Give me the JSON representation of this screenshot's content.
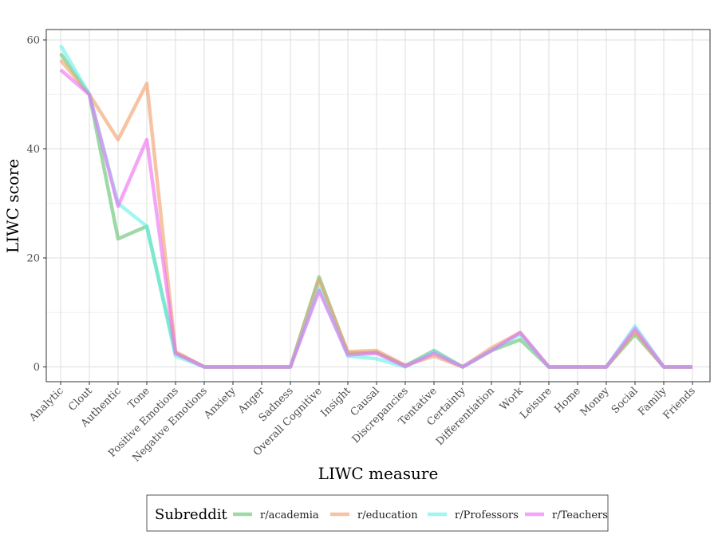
{
  "chart_data": {
    "type": "line",
    "xlabel": "LIWC measure",
    "ylabel": "LIWC score",
    "ylim": [
      -3,
      62
    ],
    "yticks": [
      0,
      20,
      40,
      60
    ],
    "grid": true,
    "legend_placement": "bottom",
    "legend_title": "Subreddit",
    "categories": [
      "Analytic",
      "Clout",
      "Authentic",
      "Tone",
      "Positive Emotions",
      "Negative Emotions",
      "Anxiety",
      "Anger",
      "Sadness",
      "Overall Cognitive",
      "Insight",
      "Causal",
      "Discrepancies",
      "Tentative",
      "Certainty",
      "Differentiation",
      "Work",
      "Leisure",
      "Home",
      "Money",
      "Social",
      "Family",
      "Friends"
    ],
    "series": [
      {
        "name": "r/academia",
        "color": "#62c36e",
        "values": [
          57.5,
          50,
          23.5,
          25.8,
          2.5,
          0,
          0,
          0,
          0,
          16.5,
          2.5,
          2.7,
          0.2,
          3.0,
          0,
          3.0,
          5.0,
          0,
          0,
          0,
          6.0,
          0,
          0
        ]
      },
      {
        "name": "r/education",
        "color": "#f0a06a",
        "values": [
          56.3,
          50,
          41.7,
          52.0,
          2.8,
          0,
          0,
          0,
          0,
          16.0,
          2.8,
          3.0,
          0.3,
          2.0,
          0,
          3.5,
          6.3,
          0,
          0,
          0,
          6.5,
          0,
          0
        ]
      },
      {
        "name": "r/Professors",
        "color": "#66f0ea",
        "values": [
          59.0,
          50,
          30.0,
          25.8,
          2.0,
          0,
          0,
          0,
          0,
          14.5,
          2.0,
          1.5,
          0,
          2.8,
          0,
          3.0,
          6.0,
          0,
          0,
          0,
          7.5,
          0,
          0
        ]
      },
      {
        "name": "r/Teachers",
        "color": "#ec6ef0",
        "values": [
          54.5,
          50,
          29.5,
          41.7,
          2.5,
          0,
          0,
          0,
          0,
          14.0,
          2.2,
          2.5,
          0.1,
          2.5,
          0,
          3.0,
          6.3,
          0,
          0,
          0,
          7.0,
          0,
          0
        ]
      }
    ]
  }
}
